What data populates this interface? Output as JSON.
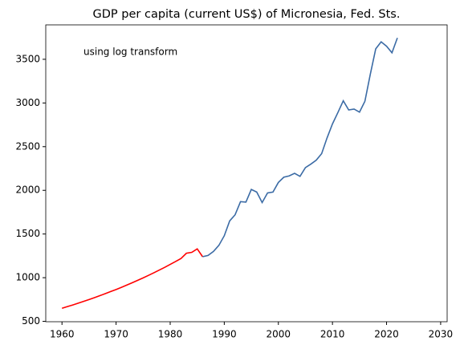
{
  "chart_data": {
    "type": "line",
    "title": "GDP per capita (current US$) of Micronesia, Fed. Sts.",
    "annotation": "using log transform",
    "x": [
      1960,
      1961,
      1962,
      1963,
      1964,
      1965,
      1966,
      1967,
      1968,
      1969,
      1970,
      1971,
      1972,
      1973,
      1974,
      1975,
      1976,
      1977,
      1978,
      1979,
      1980,
      1981,
      1982,
      1983,
      1984,
      1985,
      1986,
      1987,
      1988,
      1989,
      1990,
      1991,
      1992,
      1993,
      1994,
      1995,
      1996,
      1997,
      1998,
      1999,
      2000,
      2001,
      2002,
      2003,
      2004,
      2005,
      2006,
      2007,
      2008,
      2009,
      2010,
      2011,
      2012,
      2013,
      2014,
      2015,
      2016,
      2017,
      2018,
      2019,
      2020,
      2021,
      2022
    ],
    "series": [
      {
        "color": "#ff0000",
        "values": [
          650,
          669,
          688,
          708,
          729,
          750,
          772,
          794,
          817,
          841,
          865,
          890,
          916,
          943,
          970,
          998,
          1027,
          1057,
          1088,
          1119,
          1152,
          1185,
          1220,
          1280,
          1290,
          1330,
          1240,
          null,
          null,
          null,
          null,
          null,
          null,
          null,
          null,
          null,
          null,
          null,
          null,
          null,
          null,
          null,
          null,
          null,
          null,
          null,
          null,
          null,
          null,
          null,
          null,
          null,
          null,
          null,
          null,
          null,
          null,
          null,
          null,
          null,
          null,
          null,
          null
        ]
      },
      {
        "color": "#3b6ba5",
        "values": [
          null,
          null,
          null,
          null,
          null,
          null,
          null,
          null,
          null,
          null,
          null,
          null,
          null,
          null,
          null,
          null,
          null,
          null,
          null,
          null,
          null,
          null,
          null,
          null,
          null,
          null,
          1240,
          1255,
          1300,
          1370,
          1480,
          1650,
          1720,
          1870,
          1865,
          2010,
          1980,
          1860,
          1970,
          1980,
          2090,
          2150,
          2165,
          2195,
          2160,
          2260,
          2300,
          2345,
          2420,
          2600,
          2760,
          2890,
          3025,
          2920,
          2930,
          2895,
          3020,
          3330,
          3620,
          3700,
          3650,
          3575,
          3745
        ]
      }
    ],
    "xlim": [
      1957,
      2031.2
    ],
    "xticks": [
      1960,
      1970,
      1980,
      1990,
      2000,
      2010,
      2020,
      2030
    ],
    "ylim": [
      496,
      3894
    ],
    "yticks": [
      500,
      1000,
      1500,
      2000,
      2500,
      3000,
      3500
    ]
  }
}
